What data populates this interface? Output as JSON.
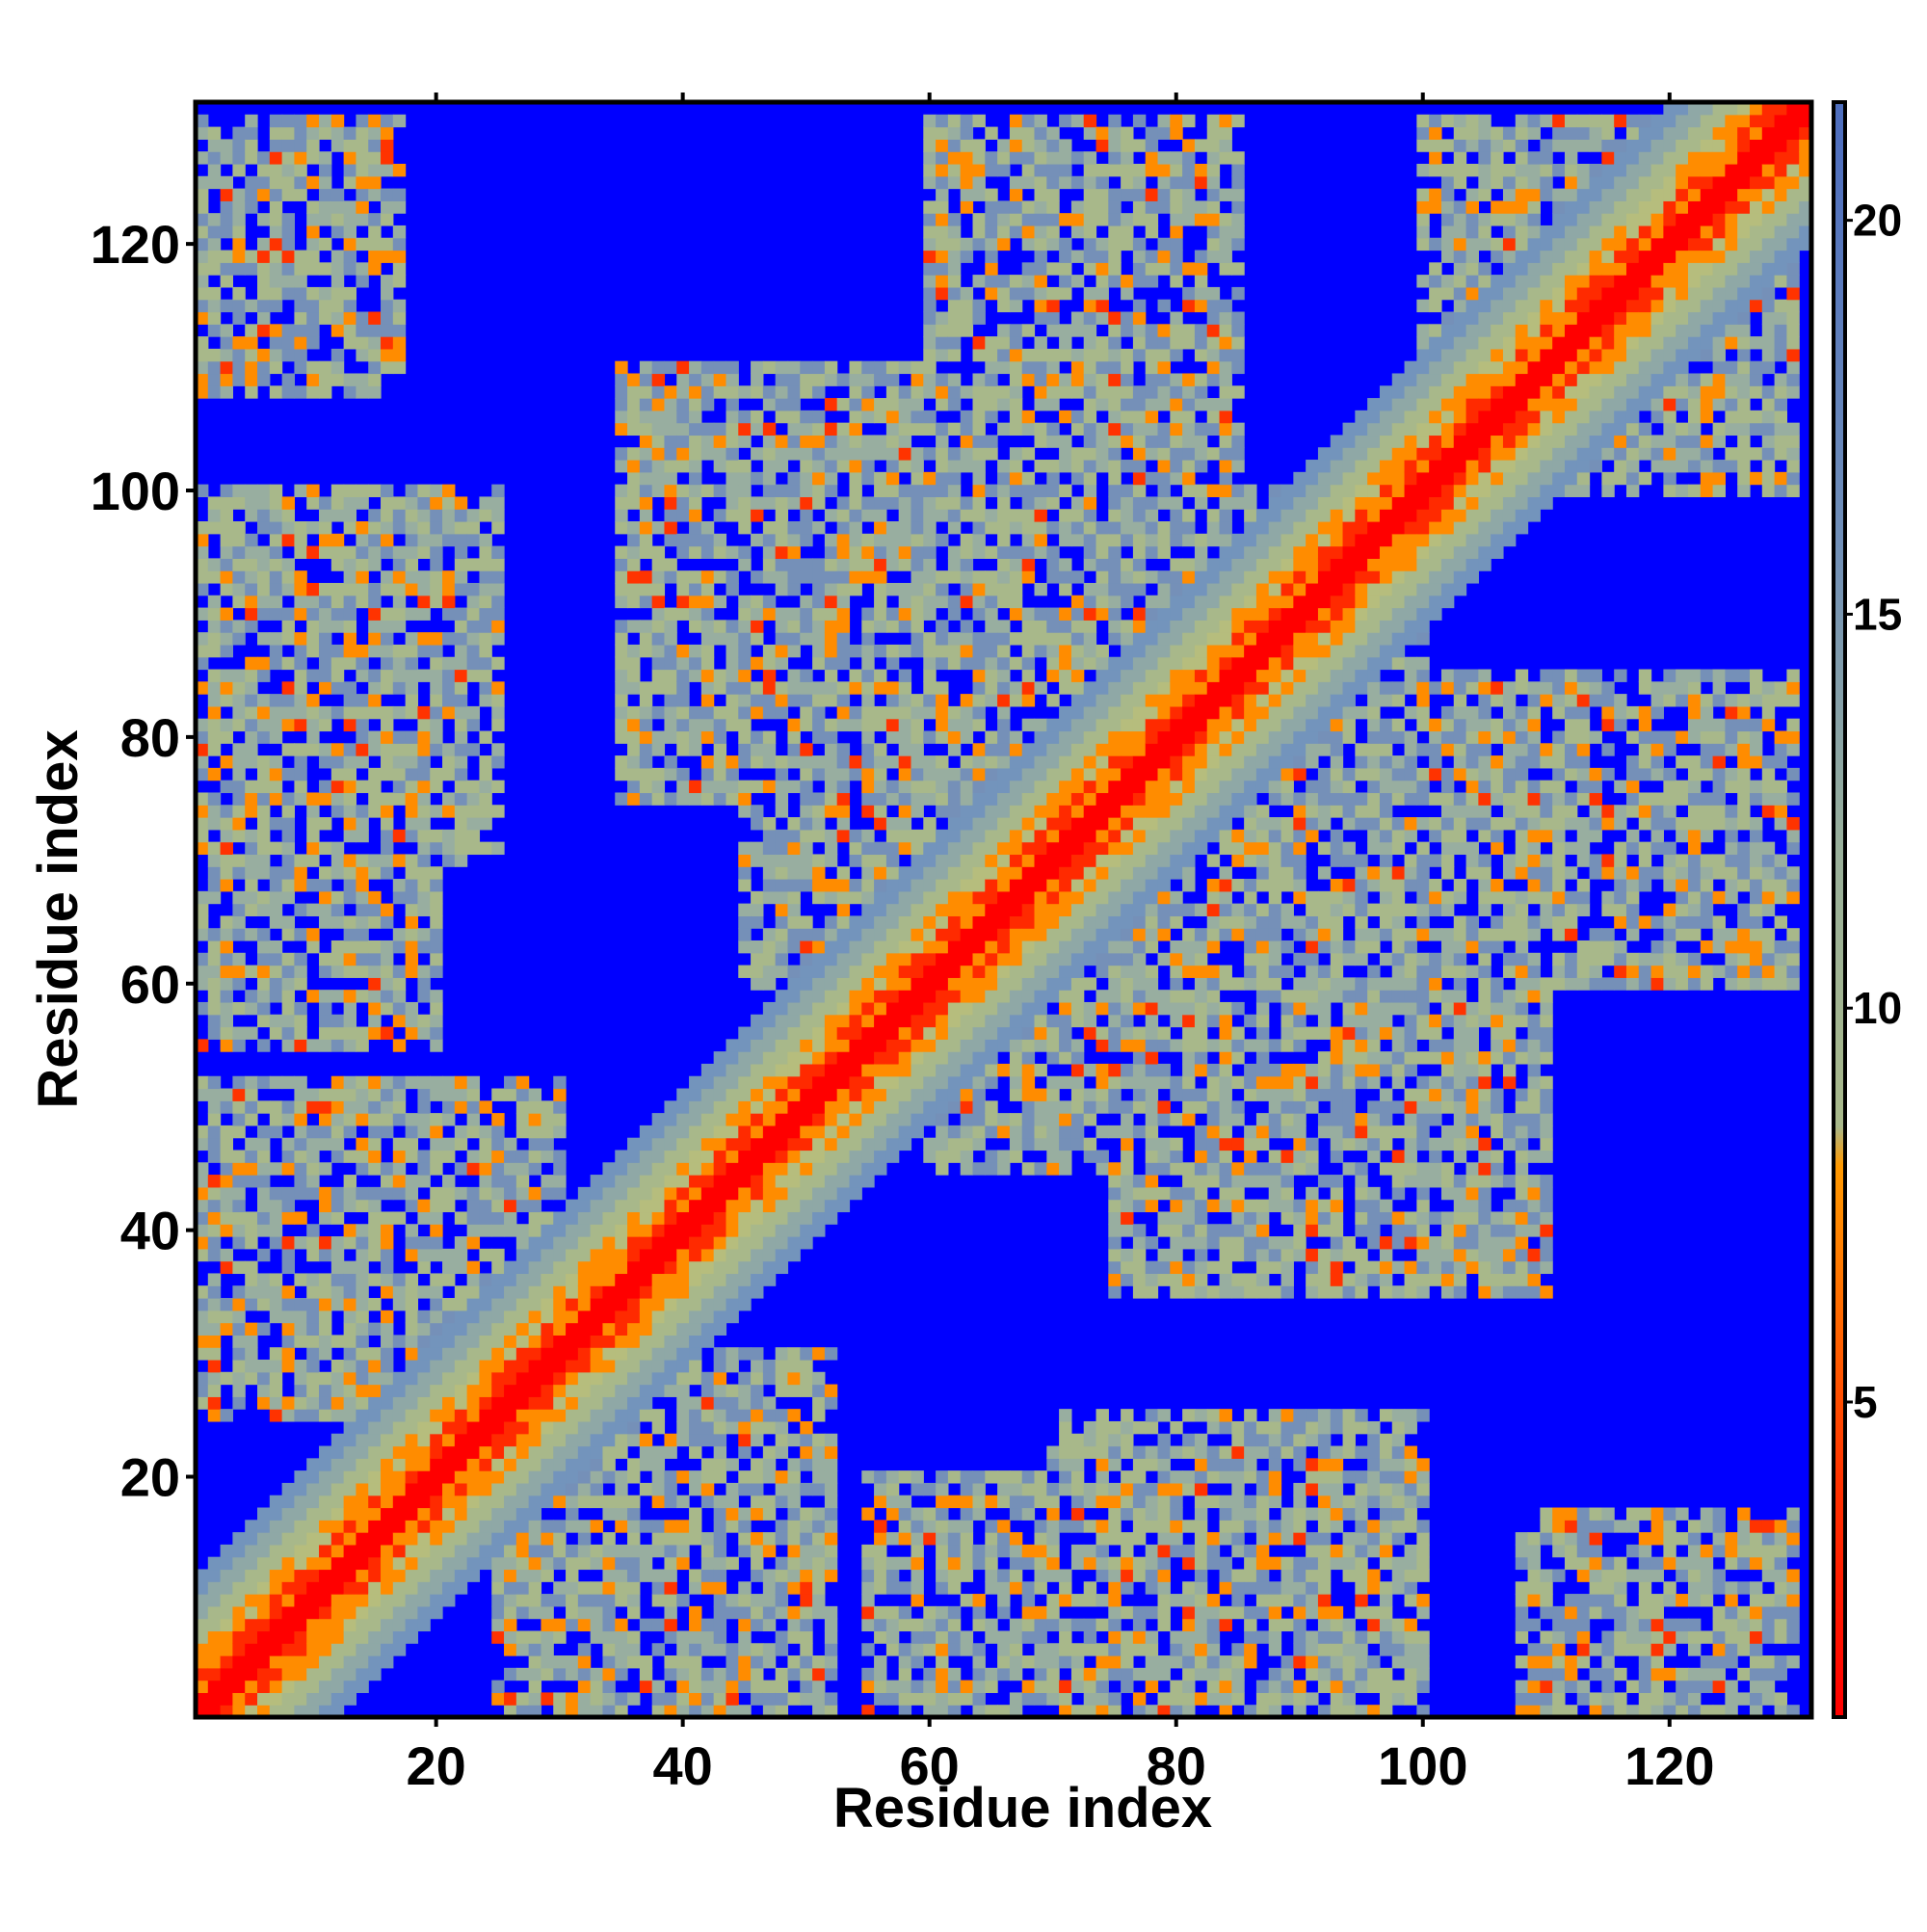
{
  "chart_data": {
    "type": "heatmap",
    "title": "",
    "xlabel": "Residue index",
    "ylabel": "Residue index",
    "xlim": [
      1,
      131
    ],
    "ylim": [
      1,
      131
    ],
    "x_ticks": [
      20,
      40,
      60,
      80,
      100,
      120
    ],
    "y_ticks": [
      20,
      40,
      60,
      80,
      100,
      120
    ],
    "x_tick_labels": [
      "20",
      "40",
      "60",
      "80",
      "100",
      "120"
    ],
    "y_tick_labels": [
      "20",
      "40",
      "60",
      "80",
      "100",
      "120"
    ],
    "grid": false,
    "legend": "none",
    "colorbar": {
      "position": "right",
      "range": [
        1,
        21.5
      ],
      "ticks": [
        5,
        10,
        15,
        20
      ],
      "tick_labels": [
        "5",
        "10",
        "15",
        "20"
      ],
      "color_stops": [
        {
          "value": 1,
          "color": "#ff0000"
        },
        {
          "value": 4,
          "color": "#ff3300"
        },
        {
          "value": 6,
          "color": "#ff6600"
        },
        {
          "value": 8,
          "color": "#ff9900"
        },
        {
          "value": 8.5,
          "color": "#a8b88a"
        },
        {
          "value": 12,
          "color": "#99b09a"
        },
        {
          "value": 16,
          "color": "#6f8eb8"
        },
        {
          "value": 21,
          "color": "#4f6fbe"
        }
      ]
    },
    "matrix_description": {
      "n_residues": 131,
      "value_meaning": "pairwise distance",
      "diagonal_value": 2,
      "background_value": 21.5,
      "contact_clusters": [
        {
          "x": [
            1,
            17
          ],
          "y": [
            110,
            130
          ]
        },
        {
          "x": [
            1,
            25
          ],
          "y": [
            70,
            100
          ]
        },
        {
          "x": [
            1,
            15
          ],
          "y": [
            55,
            66
          ]
        },
        {
          "x": [
            1,
            25
          ],
          "y": [
            25,
            52
          ]
        },
        {
          "x": [
            25,
            52
          ],
          "y": [
            1,
            30
          ]
        },
        {
          "x": [
            35,
            60
          ],
          "y": [
            75,
            100
          ]
        },
        {
          "x": [
            45,
            70
          ],
          "y": [
            60,
            85
          ]
        },
        {
          "x": [
            55,
            70
          ],
          "y": [
            1,
            20
          ]
        },
        {
          "x": [
            65,
            80
          ],
          "y": [
            105,
            130
          ]
        },
        {
          "x": [
            65,
            90
          ],
          "y": [
            50,
            100
          ]
        },
        {
          "x": [
            75,
            95
          ],
          "y": [
            1,
            25
          ]
        },
        {
          "x": [
            75,
            110
          ],
          "y": [
            35,
            65
          ]
        },
        {
          "x": [
            85,
            130
          ],
          "y": [
            60,
            85
          ]
        },
        {
          "x": [
            100,
            130
          ],
          "y": [
            105,
            130
          ]
        },
        {
          "x": [
            108,
            123
          ],
          "y": [
            1,
            15
          ]
        }
      ]
    }
  },
  "colors": {
    "background_blue": "#0000ff",
    "diagonal_red": "#ff0000",
    "near_orange": "#ff8c00",
    "mid_sage": "#a8b88a",
    "far_steel": "#6f8eb8"
  }
}
